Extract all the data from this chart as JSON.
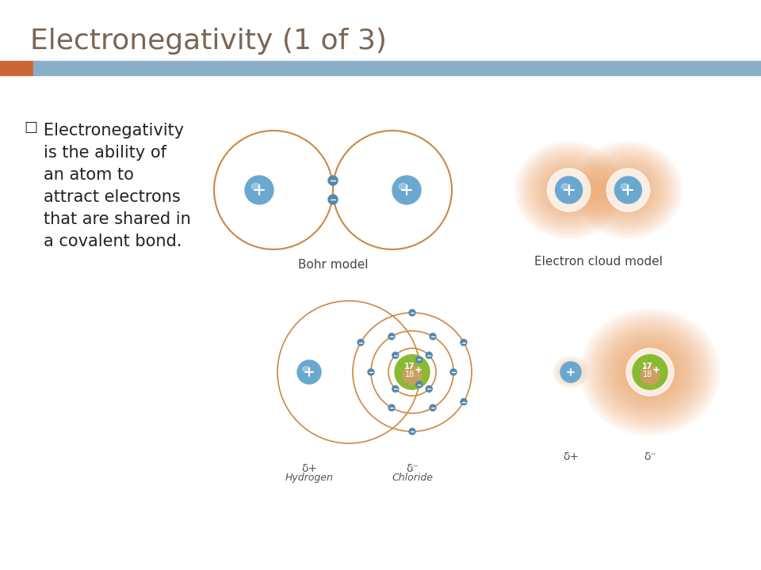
{
  "title": "Electronegativity (1 of 3)",
  "title_color": "#7B6654",
  "title_fontsize": 26,
  "header_bar_color": "#8AAEC8",
  "header_bar_left_color": "#CC6633",
  "bullet_text": [
    "Electronegativity",
    "is the ability of",
    "an atom to",
    "attract electrons",
    "that are shared in",
    "a covalent bond."
  ],
  "bullet_color": "#222222",
  "bullet_fontsize": 15,
  "background_color": "#FFFFFF",
  "bohr_label": "Bohr model",
  "cloud_label": "Electron cloud model",
  "hydrogen_label": "Hydrogen",
  "chloride_label": "Chloride",
  "delta_plus": "δ+",
  "delta_minus": "δ⁻",
  "atom_blue_color": "#6BA8D0",
  "atom_blue_dark": "#4A7FA8",
  "atom_outline_color": "#CC8844",
  "cloud_orange_color": "#F0A060",
  "cloud_orange_light": "#F5C090",
  "green_nucleus_color": "#88BB33",
  "tan_nucleus_color": "#C8A060",
  "electron_color": "#5588AA"
}
